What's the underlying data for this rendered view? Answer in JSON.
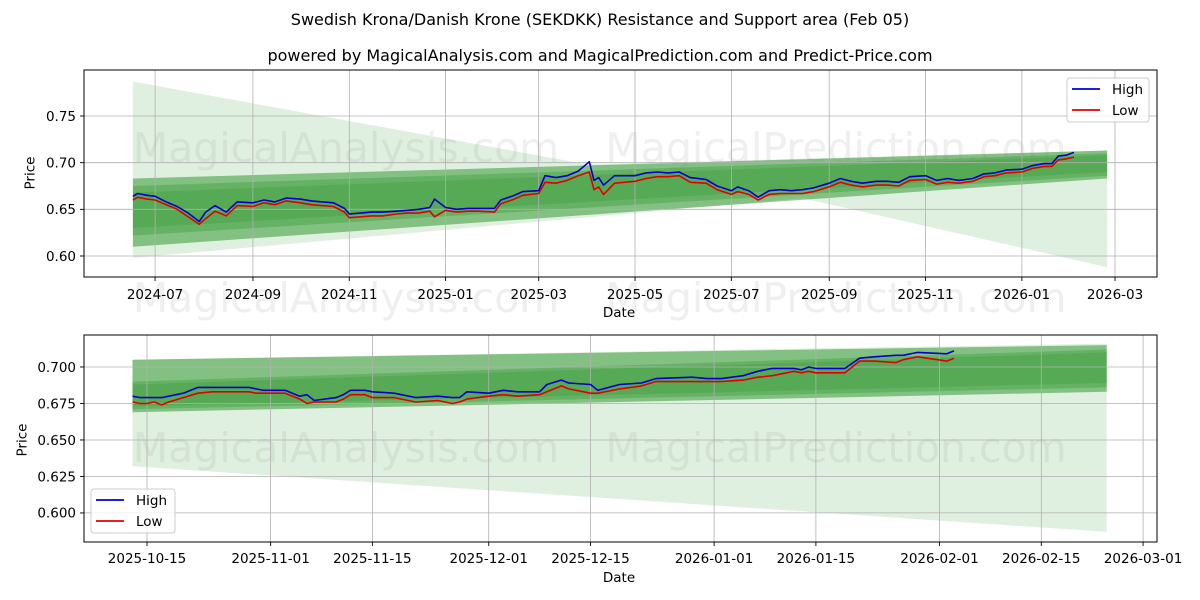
{
  "figure": {
    "title": "Swedish Krona/Danish Krone (SEKDKK) Resistance and Support area (Feb 05)",
    "subtitle": "powered by MagicalAnalysis.com and MagicalPrediction.com and Predict-Price.com",
    "watermarks": [
      "MagicalAnalysis.com",
      "MagicalPrediction.com"
    ]
  },
  "colors": {
    "high": "#0000cd",
    "low": "#e00000",
    "band": "#008000",
    "grid": "#b0b0b0",
    "watermark": "#808080"
  },
  "chart_data": [
    {
      "type": "line",
      "title": "",
      "xlabel": "Date",
      "ylabel": "Price",
      "xlim": [
        "2024-05-17T00:00",
        "2026-03-27T14:00"
      ],
      "ylim": [
        0.5775,
        0.7993
      ],
      "grid": true,
      "legend": {
        "position": "upper right",
        "entries": [
          "High",
          "Low"
        ]
      },
      "x_ticks": [
        {
          "date": "2024-07-01",
          "label": "2024-07"
        },
        {
          "date": "2024-09-01",
          "label": "2024-09"
        },
        {
          "date": "2024-11-01",
          "label": "2024-11"
        },
        {
          "date": "2025-01-01",
          "label": "2025-01"
        },
        {
          "date": "2025-03-01",
          "label": "2025-03"
        },
        {
          "date": "2025-05-01",
          "label": "2025-05"
        },
        {
          "date": "2025-07-01",
          "label": "2025-07"
        },
        {
          "date": "2025-09-01",
          "label": "2025-09"
        },
        {
          "date": "2025-11-01",
          "label": "2025-11"
        },
        {
          "date": "2026-01-01",
          "label": "2026-01"
        },
        {
          "date": "2026-03-01",
          "label": "2026-03"
        }
      ],
      "y_ticks": [
        {
          "value": 0.6,
          "label": "0.60"
        },
        {
          "value": 0.65,
          "label": "0.65"
        },
        {
          "value": 0.7,
          "label": "0.70"
        },
        {
          "value": 0.75,
          "label": "0.75"
        }
      ],
      "bands": [
        {
          "name": "outer-range-cone",
          "opacity": 0.12,
          "points": [
            [
              "2024-06-17",
              0.787
            ],
            [
              "2025-04-01",
              0.698
            ],
            [
              "2026-02-24",
              0.713
            ],
            [
              "2026-02-24",
              0.588
            ],
            [
              "2025-08-15",
              0.662
            ],
            [
              "2024-06-17",
              0.598
            ]
          ]
        },
        {
          "name": "resistance-support-band",
          "opacity": 0.42,
          "points": [
            [
              "2024-06-17",
              0.683
            ],
            [
              "2026-02-24",
              0.713
            ],
            [
              "2026-02-24",
              0.683
            ],
            [
              "2024-06-17",
              0.61
            ]
          ]
        },
        {
          "name": "inner-band",
          "opacity": 0.22,
          "points": [
            [
              "2024-06-17",
              0.675
            ],
            [
              "2026-02-24",
              0.71
            ],
            [
              "2026-02-24",
              0.686
            ],
            [
              "2024-06-17",
              0.622
            ]
          ]
        },
        {
          "name": "core-band",
          "opacity": 0.15,
          "points": [
            [
              "2024-06-17",
              0.668
            ],
            [
              "2026-02-24",
              0.708
            ],
            [
              "2026-02-24",
              0.69
            ],
            [
              "2024-06-17",
              0.63
            ]
          ]
        }
      ],
      "x": [
        "2024-06-17",
        "2024-06-20",
        "2024-06-26",
        "2024-07-01",
        "2024-07-08",
        "2024-07-15",
        "2024-07-22",
        "2024-07-29",
        "2024-08-02",
        "2024-08-08",
        "2024-08-15",
        "2024-08-22",
        "2024-09-01",
        "2024-09-08",
        "2024-09-15",
        "2024-09-22",
        "2024-10-01",
        "2024-10-08",
        "2024-10-15",
        "2024-10-22",
        "2024-10-29",
        "2024-11-01",
        "2024-11-08",
        "2024-11-15",
        "2024-11-22",
        "2024-12-01",
        "2024-12-08",
        "2024-12-15",
        "2024-12-22",
        "2024-12-25",
        "2025-01-01",
        "2025-01-08",
        "2025-01-15",
        "2025-01-22",
        "2025-02-01",
        "2025-02-05",
        "2025-02-12",
        "2025-02-19",
        "2025-03-01",
        "2025-03-05",
        "2025-03-12",
        "2025-03-19",
        "2025-03-26",
        "2025-04-02",
        "2025-04-05",
        "2025-04-08",
        "2025-04-11",
        "2025-04-18",
        "2025-05-01",
        "2025-05-08",
        "2025-05-15",
        "2025-05-22",
        "2025-05-29",
        "2025-06-05",
        "2025-06-15",
        "2025-06-22",
        "2025-07-01",
        "2025-07-05",
        "2025-07-12",
        "2025-07-18",
        "2025-07-25",
        "2025-08-01",
        "2025-08-08",
        "2025-08-15",
        "2025-08-22",
        "2025-09-01",
        "2025-09-08",
        "2025-09-15",
        "2025-09-22",
        "2025-10-01",
        "2025-10-08",
        "2025-10-15",
        "2025-10-22",
        "2025-11-01",
        "2025-11-08",
        "2025-11-15",
        "2025-11-22",
        "2025-12-01",
        "2025-12-08",
        "2025-12-15",
        "2025-12-22",
        "2026-01-01",
        "2026-01-08",
        "2026-01-15",
        "2026-01-20",
        "2026-01-24",
        "2026-01-29",
        "2026-02-03"
      ],
      "series": [
        {
          "name": "High",
          "values": [
            0.664,
            0.667,
            0.665,
            0.664,
            0.658,
            0.653,
            0.646,
            0.637,
            0.647,
            0.654,
            0.647,
            0.658,
            0.657,
            0.66,
            0.658,
            0.662,
            0.661,
            0.659,
            0.658,
            0.657,
            0.651,
            0.645,
            0.646,
            0.647,
            0.647,
            0.648,
            0.649,
            0.65,
            0.652,
            0.661,
            0.652,
            0.65,
            0.651,
            0.651,
            0.651,
            0.66,
            0.664,
            0.669,
            0.67,
            0.686,
            0.684,
            0.686,
            0.691,
            0.701,
            0.681,
            0.684,
            0.676,
            0.686,
            0.686,
            0.689,
            0.69,
            0.689,
            0.69,
            0.684,
            0.682,
            0.675,
            0.67,
            0.674,
            0.67,
            0.663,
            0.67,
            0.671,
            0.67,
            0.671,
            0.673,
            0.678,
            0.683,
            0.68,
            0.678,
            0.68,
            0.68,
            0.679,
            0.685,
            0.686,
            0.681,
            0.683,
            0.681,
            0.683,
            0.688,
            0.689,
            0.692,
            0.693,
            0.697,
            0.699,
            0.699,
            0.707,
            0.708,
            0.711
          ]
        },
        {
          "name": "Low",
          "values": [
            0.66,
            0.663,
            0.661,
            0.66,
            0.655,
            0.65,
            0.642,
            0.634,
            0.64,
            0.648,
            0.643,
            0.654,
            0.653,
            0.657,
            0.655,
            0.659,
            0.657,
            0.655,
            0.654,
            0.653,
            0.647,
            0.641,
            0.642,
            0.643,
            0.643,
            0.645,
            0.646,
            0.646,
            0.648,
            0.642,
            0.649,
            0.647,
            0.648,
            0.648,
            0.647,
            0.656,
            0.66,
            0.665,
            0.667,
            0.679,
            0.678,
            0.681,
            0.686,
            0.69,
            0.671,
            0.674,
            0.666,
            0.678,
            0.68,
            0.683,
            0.685,
            0.685,
            0.686,
            0.679,
            0.678,
            0.671,
            0.666,
            0.669,
            0.666,
            0.66,
            0.666,
            0.667,
            0.667,
            0.667,
            0.669,
            0.674,
            0.679,
            0.676,
            0.674,
            0.676,
            0.676,
            0.675,
            0.681,
            0.682,
            0.677,
            0.679,
            0.678,
            0.68,
            0.685,
            0.686,
            0.689,
            0.69,
            0.694,
            0.696,
            0.696,
            0.703,
            0.704,
            0.706
          ]
        }
      ]
    },
    {
      "type": "line",
      "title": "",
      "xlabel": "Date",
      "ylabel": "Price",
      "xlim": [
        "2025-10-06T08:00",
        "2026-03-02T22:00"
      ],
      "ylim": [
        0.5801,
        0.7219
      ],
      "grid": true,
      "legend": {
        "position": "lower left",
        "entries": [
          "High",
          "Low"
        ]
      },
      "x_ticks": [
        {
          "date": "2025-10-15",
          "label": "2025-10-15"
        },
        {
          "date": "2025-11-01",
          "label": "2025-11-01"
        },
        {
          "date": "2025-11-15",
          "label": "2025-11-15"
        },
        {
          "date": "2025-12-01",
          "label": "2025-12-01"
        },
        {
          "date": "2025-12-15",
          "label": "2025-12-15"
        },
        {
          "date": "2026-01-01",
          "label": "2026-01-01"
        },
        {
          "date": "2026-01-15",
          "label": "2026-01-15"
        },
        {
          "date": "2026-02-01",
          "label": "2026-02-01"
        },
        {
          "date": "2026-02-15",
          "label": "2026-02-15"
        },
        {
          "date": "2026-03-01",
          "label": "2026-03-01"
        }
      ],
      "y_ticks": [
        {
          "value": 0.6,
          "label": "0.600"
        },
        {
          "value": 0.625,
          "label": "0.625"
        },
        {
          "value": 0.65,
          "label": "0.650"
        },
        {
          "value": 0.675,
          "label": "0.675"
        },
        {
          "value": 0.7,
          "label": "0.700"
        }
      ],
      "bands": [
        {
          "name": "outer-range-cone",
          "opacity": 0.12,
          "points": [
            [
              "2025-10-13",
              0.705
            ],
            [
              "2026-02-24",
              0.716
            ],
            [
              "2026-02-24",
              0.587
            ],
            [
              "2025-10-13",
              0.632
            ]
          ]
        },
        {
          "name": "resistance-support-band",
          "opacity": 0.42,
          "points": [
            [
              "2025-10-13",
              0.705
            ],
            [
              "2026-02-24",
              0.715
            ],
            [
              "2026-02-24",
              0.683
            ],
            [
              "2025-10-13",
              0.669
            ]
          ]
        },
        {
          "name": "inner-band",
          "opacity": 0.22,
          "points": [
            [
              "2025-10-13",
              0.69
            ],
            [
              "2026-02-24",
              0.712
            ],
            [
              "2026-02-24",
              0.686
            ],
            [
              "2025-10-13",
              0.671
            ]
          ]
        },
        {
          "name": "core-band",
          "opacity": 0.15,
          "points": [
            [
              "2025-10-13",
              0.688
            ],
            [
              "2026-02-24",
              0.71
            ],
            [
              "2026-02-24",
              0.689
            ],
            [
              "2025-10-13",
              0.673
            ]
          ]
        }
      ],
      "x": [
        "2025-10-13",
        "2025-10-14",
        "2025-10-15",
        "2025-10-16",
        "2025-10-17",
        "2025-10-18",
        "2025-10-20",
        "2025-10-22",
        "2025-10-24",
        "2025-10-27",
        "2025-10-29",
        "2025-10-30",
        "2025-10-31",
        "2025-11-03",
        "2025-11-05",
        "2025-11-06",
        "2025-11-07",
        "2025-11-10",
        "2025-11-11",
        "2025-11-12",
        "2025-11-14",
        "2025-11-15",
        "2025-11-18",
        "2025-11-19",
        "2025-11-21",
        "2025-11-24",
        "2025-11-26",
        "2025-11-27",
        "2025-11-28",
        "2025-12-01",
        "2025-12-03",
        "2025-12-05",
        "2025-12-08",
        "2025-12-09",
        "2025-12-11",
        "2025-12-12",
        "2025-12-15",
        "2025-12-16",
        "2025-12-19",
        "2025-12-22",
        "2025-12-24",
        "2025-12-29",
        "2025-12-31",
        "2026-01-02",
        "2026-01-05",
        "2026-01-07",
        "2026-01-09",
        "2026-01-12",
        "2026-01-13",
        "2026-01-14",
        "2026-01-15",
        "2026-01-19",
        "2026-01-21",
        "2026-01-23",
        "2026-01-26",
        "2026-01-27",
        "2026-01-29",
        "2026-02-02",
        "2026-02-03"
      ],
      "series": [
        {
          "name": "High",
          "values": [
            0.68,
            0.679,
            0.679,
            0.679,
            0.679,
            0.68,
            0.682,
            0.686,
            0.686,
            0.686,
            0.686,
            0.685,
            0.684,
            0.684,
            0.68,
            0.681,
            0.677,
            0.679,
            0.681,
            0.684,
            0.684,
            0.683,
            0.682,
            0.681,
            0.679,
            0.68,
            0.679,
            0.679,
            0.683,
            0.682,
            0.684,
            0.683,
            0.683,
            0.688,
            0.691,
            0.689,
            0.688,
            0.684,
            0.688,
            0.689,
            0.692,
            0.693,
            0.692,
            0.692,
            0.694,
            0.697,
            0.699,
            0.699,
            0.698,
            0.7,
            0.699,
            0.699,
            0.706,
            0.707,
            0.708,
            0.708,
            0.71,
            0.709,
            0.711
          ]
        },
        {
          "name": "Low",
          "values": [
            0.676,
            0.675,
            0.675,
            0.676,
            0.674,
            0.676,
            0.679,
            0.682,
            0.683,
            0.683,
            0.683,
            0.682,
            0.682,
            0.682,
            0.678,
            0.675,
            0.676,
            0.676,
            0.678,
            0.681,
            0.681,
            0.679,
            0.679,
            0.678,
            0.676,
            0.677,
            0.675,
            0.676,
            0.678,
            0.68,
            0.681,
            0.68,
            0.681,
            0.683,
            0.687,
            0.685,
            0.682,
            0.682,
            0.685,
            0.687,
            0.69,
            0.69,
            0.69,
            0.69,
            0.691,
            0.693,
            0.694,
            0.697,
            0.696,
            0.697,
            0.696,
            0.696,
            0.704,
            0.704,
            0.703,
            0.705,
            0.707,
            0.704,
            0.706
          ]
        }
      ]
    }
  ]
}
